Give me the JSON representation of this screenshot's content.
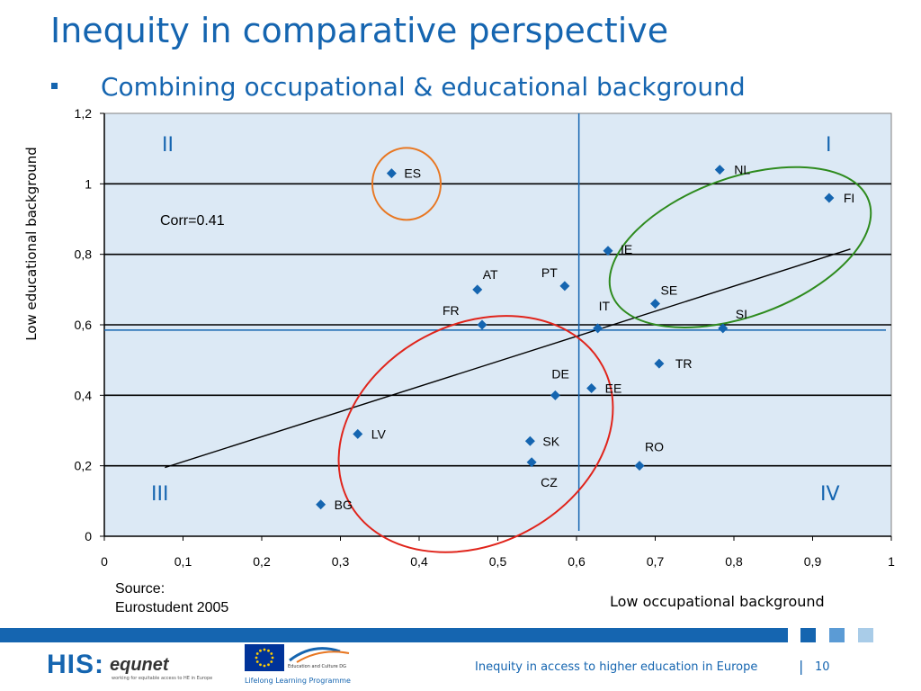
{
  "slide": {
    "title": "Inequity in comparative perspective",
    "subtitle": "Combining occupational & educational background",
    "source_line1": "Source:",
    "source_line2": "Eurostudent 2005",
    "footer_text": "Inequity in access to higher education in Europe",
    "footer_sep": "|",
    "page_number": "10",
    "logo_his": "HIS",
    "logo_equnet": "equnet",
    "logo_equnet_tagline": "working for equitable access to HE in Europe",
    "eu_program_text": "Education and Culture DG",
    "eu_programme_name": "Lifelong Learning Programme",
    "accent_color": "#1565b0",
    "footer_square_colors": [
      "#1565b0",
      "#5b9bd5",
      "#a9cce8"
    ]
  },
  "chart_data": {
    "type": "scatter",
    "xlabel": "Low occupational background",
    "ylabel": "Low educational background",
    "xlim": [
      0,
      1
    ],
    "ylim": [
      0,
      1.2
    ],
    "xticks": [
      "0",
      "0,1",
      "0,2",
      "0,3",
      "0,4",
      "0,5",
      "0,6",
      "0,7",
      "0,8",
      "0,9",
      "1"
    ],
    "yticks": [
      "0",
      "0,2",
      "0,4",
      "0,6",
      "0,8",
      "1",
      "1,2"
    ],
    "grid": "horizontal",
    "background_color": "#dce9f5",
    "marker_color": "#1565b0",
    "points": [
      {
        "label": "ES",
        "x": 0.365,
        "y": 1.03
      },
      {
        "label": "NL",
        "x": 0.782,
        "y": 1.04
      },
      {
        "label": "FI",
        "x": 0.921,
        "y": 0.96
      },
      {
        "label": "IE",
        "x": 0.64,
        "y": 0.81
      },
      {
        "label": "AT",
        "x": 0.474,
        "y": 0.7
      },
      {
        "label": "PT",
        "x": 0.585,
        "y": 0.71
      },
      {
        "label": "SE",
        "x": 0.7,
        "y": 0.66
      },
      {
        "label": "FR",
        "x": 0.48,
        "y": 0.6
      },
      {
        "label": "IT",
        "x": 0.627,
        "y": 0.59
      },
      {
        "label": "SI",
        "x": 0.786,
        "y": 0.59
      },
      {
        "label": "TR",
        "x": 0.705,
        "y": 0.49
      },
      {
        "label": "DE",
        "x": 0.573,
        "y": 0.4
      },
      {
        "label": "EE",
        "x": 0.619,
        "y": 0.42
      },
      {
        "label": "LV",
        "x": 0.322,
        "y": 0.29
      },
      {
        "label": "SK",
        "x": 0.541,
        "y": 0.27
      },
      {
        "label": "CZ",
        "x": 0.543,
        "y": 0.21
      },
      {
        "label": "RO",
        "x": 0.68,
        "y": 0.2
      },
      {
        "label": "BG",
        "x": 0.275,
        "y": 0.09
      }
    ],
    "mean_x": 0.603,
    "mean_y": 0.585,
    "trendline": {
      "x": [
        0.077,
        0.948
      ],
      "y": [
        0.195,
        0.815
      ]
    },
    "annotation": "Corr=0.41",
    "quadrants": [
      "I",
      "II",
      "III",
      "IV"
    ],
    "highlights": [
      {
        "name": "ES circle",
        "color": "#e87722"
      },
      {
        "name": "top-right ellipse",
        "color": "#2e8b1e"
      },
      {
        "name": "bottom-left ellipse",
        "color": "#e0241b"
      }
    ]
  }
}
